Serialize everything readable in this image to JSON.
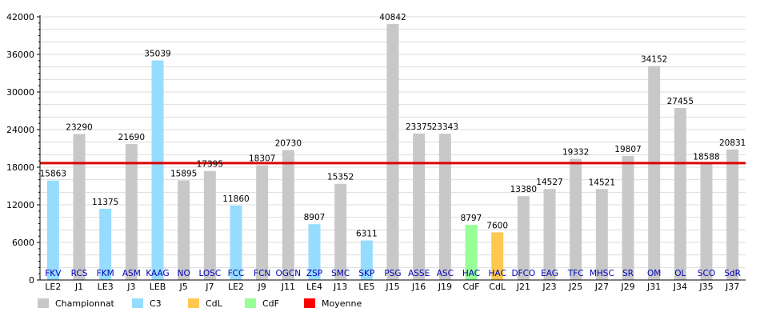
{
  "chart_data": {
    "type": "bar",
    "title": "",
    "xlabel": "",
    "ylabel": "",
    "ylim": [
      0,
      42000
    ],
    "yticks": [
      0,
      6000,
      12000,
      18000,
      24000,
      30000,
      36000,
      42000
    ],
    "grid": true,
    "legend_position": "bottom",
    "categories": [
      "LE2",
      "J1",
      "LE3",
      "J3",
      "LEB",
      "J5",
      "J7",
      "LE2",
      "J9",
      "J11",
      "LE4",
      "J13",
      "LE5",
      "J15",
      "J16",
      "J19",
      "CdF",
      "CdL",
      "J21",
      "J23",
      "J25",
      "J27",
      "J29",
      "J31",
      "J34",
      "J35",
      "J37"
    ],
    "opponents": [
      "FKV",
      "RCS",
      "FKM",
      "ASM",
      "KAAG",
      "NO",
      "LOSC",
      "FCC",
      "FCN",
      "OGCN",
      "ZSP",
      "SMC",
      "SKP",
      "PSG",
      "ASSE",
      "ASC",
      "HAC",
      "HAC",
      "DFCO",
      "EAG",
      "TFC",
      "MHSC",
      "SR",
      "OM",
      "OL",
      "SCO",
      "SdR"
    ],
    "competitions": [
      "C3",
      "Championnat",
      "C3",
      "Championnat",
      "C3",
      "Championnat",
      "Championnat",
      "C3",
      "Championnat",
      "Championnat",
      "C3",
      "Championnat",
      "C3",
      "Championnat",
      "Championnat",
      "Championnat",
      "CdF",
      "CdL",
      "Championnat",
      "Championnat",
      "Championnat",
      "Championnat",
      "Championnat",
      "Championnat",
      "Championnat",
      "Championnat",
      "Championnat"
    ],
    "values": [
      15863,
      23290,
      11375,
      21690,
      35039,
      15895,
      17395,
      11860,
      18307,
      20730,
      8907,
      15352,
      6311,
      40842,
      23375,
      23343,
      8797,
      7600,
      13380,
      14527,
      19332,
      14521,
      19807,
      34152,
      27455,
      18588,
      20831
    ],
    "average": 18650,
    "legend": [
      {
        "key": "Championnat",
        "label": "Championnat",
        "color": "#c8c8c8"
      },
      {
        "key": "C3",
        "label": "C3",
        "color": "#96dcff"
      },
      {
        "key": "CdL",
        "label": "CdL",
        "color": "#ffc850"
      },
      {
        "key": "CdF",
        "label": "CdF",
        "color": "#96ff96"
      },
      {
        "key": "Moyenne",
        "label": "Moyenne",
        "color": "#ff0000"
      }
    ],
    "colors": {
      "Championnat": "#c8c8c8",
      "C3": "#96dcff",
      "CdL": "#ffc850",
      "CdF": "#96ff96",
      "average_line": "#dd0000",
      "opponent_text": "#0000b4",
      "grid": "#dddddd"
    }
  }
}
